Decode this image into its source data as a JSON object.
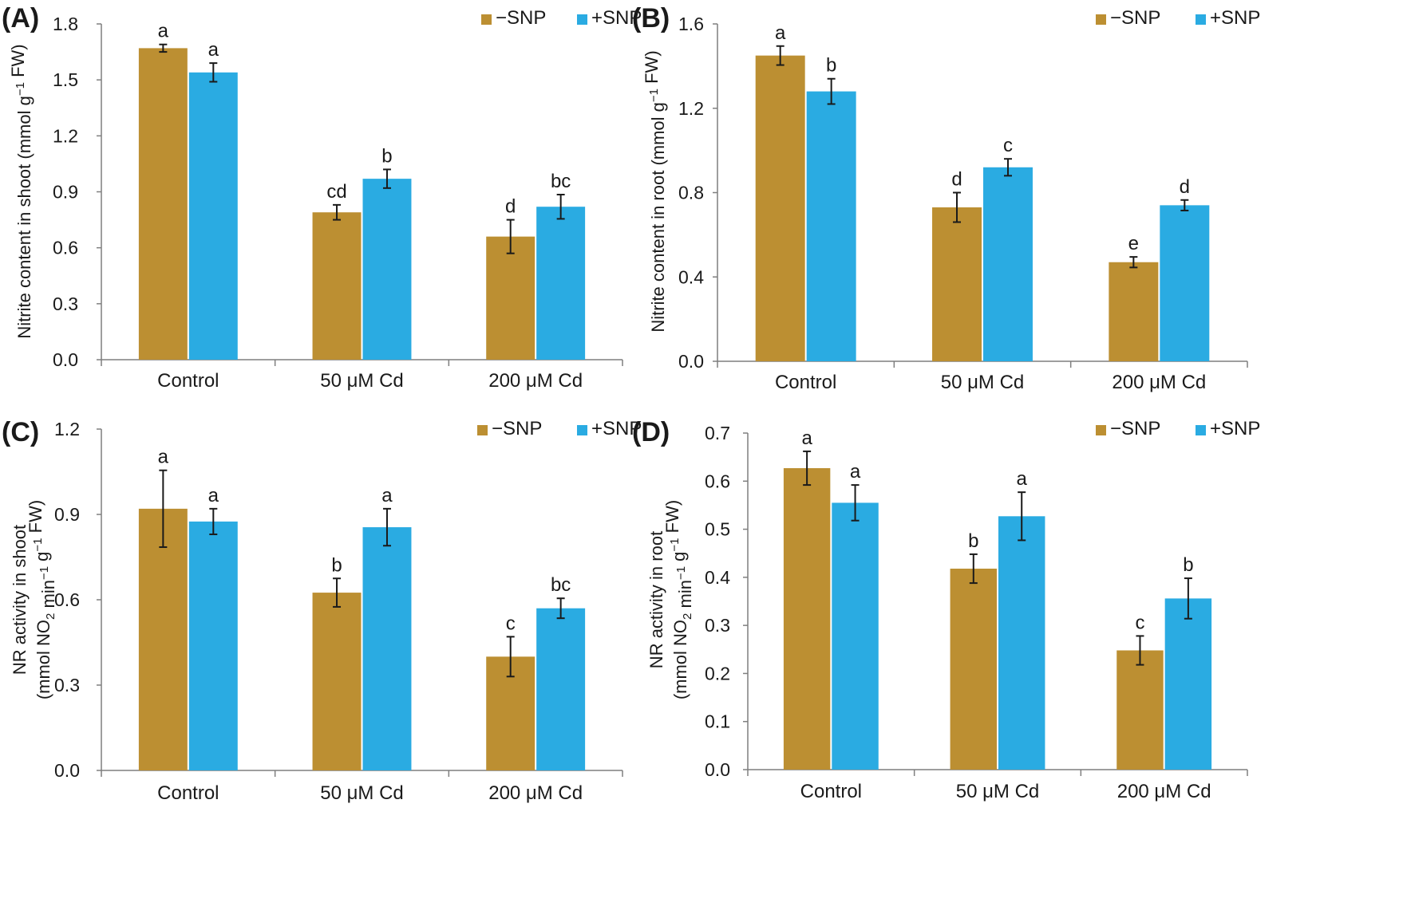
{
  "colors": {
    "minus_snp": "#BC8F32",
    "plus_snp": "#2AABE2"
  },
  "chart_data": [
    {
      "type": "bar",
      "panel": "(A)",
      "categories": [
        "Control",
        "50 μM Cd",
        "200 μM Cd"
      ],
      "ylabel": "Nitrite content in shoot (mmol g⁻¹ FW)",
      "ylim": [
        0,
        1.8
      ],
      "yticks": [
        "0.0",
        "0.3",
        "0.6",
        "0.9",
        "1.2",
        "1.5",
        "1.8"
      ],
      "series": [
        {
          "name": "−SNP",
          "values": [
            1.67,
            0.79,
            0.66
          ],
          "errors": [
            0.02,
            0.04,
            0.09
          ],
          "letters": [
            "a",
            "cd",
            "d"
          ]
        },
        {
          "name": "+SNP",
          "values": [
            1.54,
            0.97,
            0.82
          ],
          "errors": [
            0.05,
            0.05,
            0.065
          ],
          "letters": [
            "a",
            "b",
            "bc"
          ]
        }
      ]
    },
    {
      "type": "bar",
      "panel": "(B)",
      "categories": [
        "Control",
        "50 μM Cd",
        "200 μM Cd"
      ],
      "ylabel": "Nitrite content in root (mmol g⁻¹ FW)",
      "ylim": [
        0,
        1.6
      ],
      "yticks": [
        "0.0",
        "0.4",
        "0.8",
        "1.2",
        "1.6"
      ],
      "series": [
        {
          "name": "−SNP",
          "values": [
            1.45,
            0.73,
            0.47
          ],
          "errors": [
            0.045,
            0.07,
            0.025
          ],
          "letters": [
            "a",
            "d",
            "e"
          ]
        },
        {
          "name": "+SNP",
          "values": [
            1.28,
            0.92,
            0.74
          ],
          "errors": [
            0.06,
            0.04,
            0.025
          ],
          "letters": [
            "b",
            "c",
            "d"
          ]
        }
      ]
    },
    {
      "type": "bar",
      "panel": "(C)",
      "categories": [
        "Control",
        "50 μM Cd",
        "200 μM Cd"
      ],
      "ylabel_line1": "NR activity in shoot",
      "ylabel_line2": "(mmol NO₂ min⁻¹ g⁻¹ FW)",
      "ylim": [
        0,
        1.2
      ],
      "yticks": [
        "0.0",
        "0.3",
        "0.6",
        "0.9",
        "1.2"
      ],
      "series": [
        {
          "name": "−SNP",
          "values": [
            0.92,
            0.625,
            0.4
          ],
          "errors": [
            0.135,
            0.05,
            0.07
          ],
          "letters": [
            "a",
            "b",
            "c"
          ]
        },
        {
          "name": "+SNP",
          "values": [
            0.875,
            0.855,
            0.57
          ],
          "errors": [
            0.045,
            0.065,
            0.035
          ],
          "letters": [
            "a",
            "a",
            "bc"
          ]
        }
      ]
    },
    {
      "type": "bar",
      "panel": "(D)",
      "categories": [
        "Control",
        "50 μM Cd",
        "200 μM Cd"
      ],
      "ylabel_line1": "NR activity in root",
      "ylabel_line2": "(mmol NO₂ min⁻¹ g⁻¹ FW)",
      "ylim": [
        0,
        0.7
      ],
      "yticks": [
        "0.0",
        "0.1",
        "0.2",
        "0.3",
        "0.4",
        "0.5",
        "0.6",
        "0.7"
      ],
      "series": [
        {
          "name": "−SNP",
          "values": [
            0.627,
            0.418,
            0.248
          ],
          "errors": [
            0.035,
            0.03,
            0.03
          ],
          "letters": [
            "a",
            "b",
            "c"
          ]
        },
        {
          "name": "+SNP",
          "values": [
            0.555,
            0.527,
            0.356
          ],
          "errors": [
            0.037,
            0.05,
            0.042
          ],
          "letters": [
            "a",
            "a",
            "b"
          ]
        }
      ]
    }
  ]
}
